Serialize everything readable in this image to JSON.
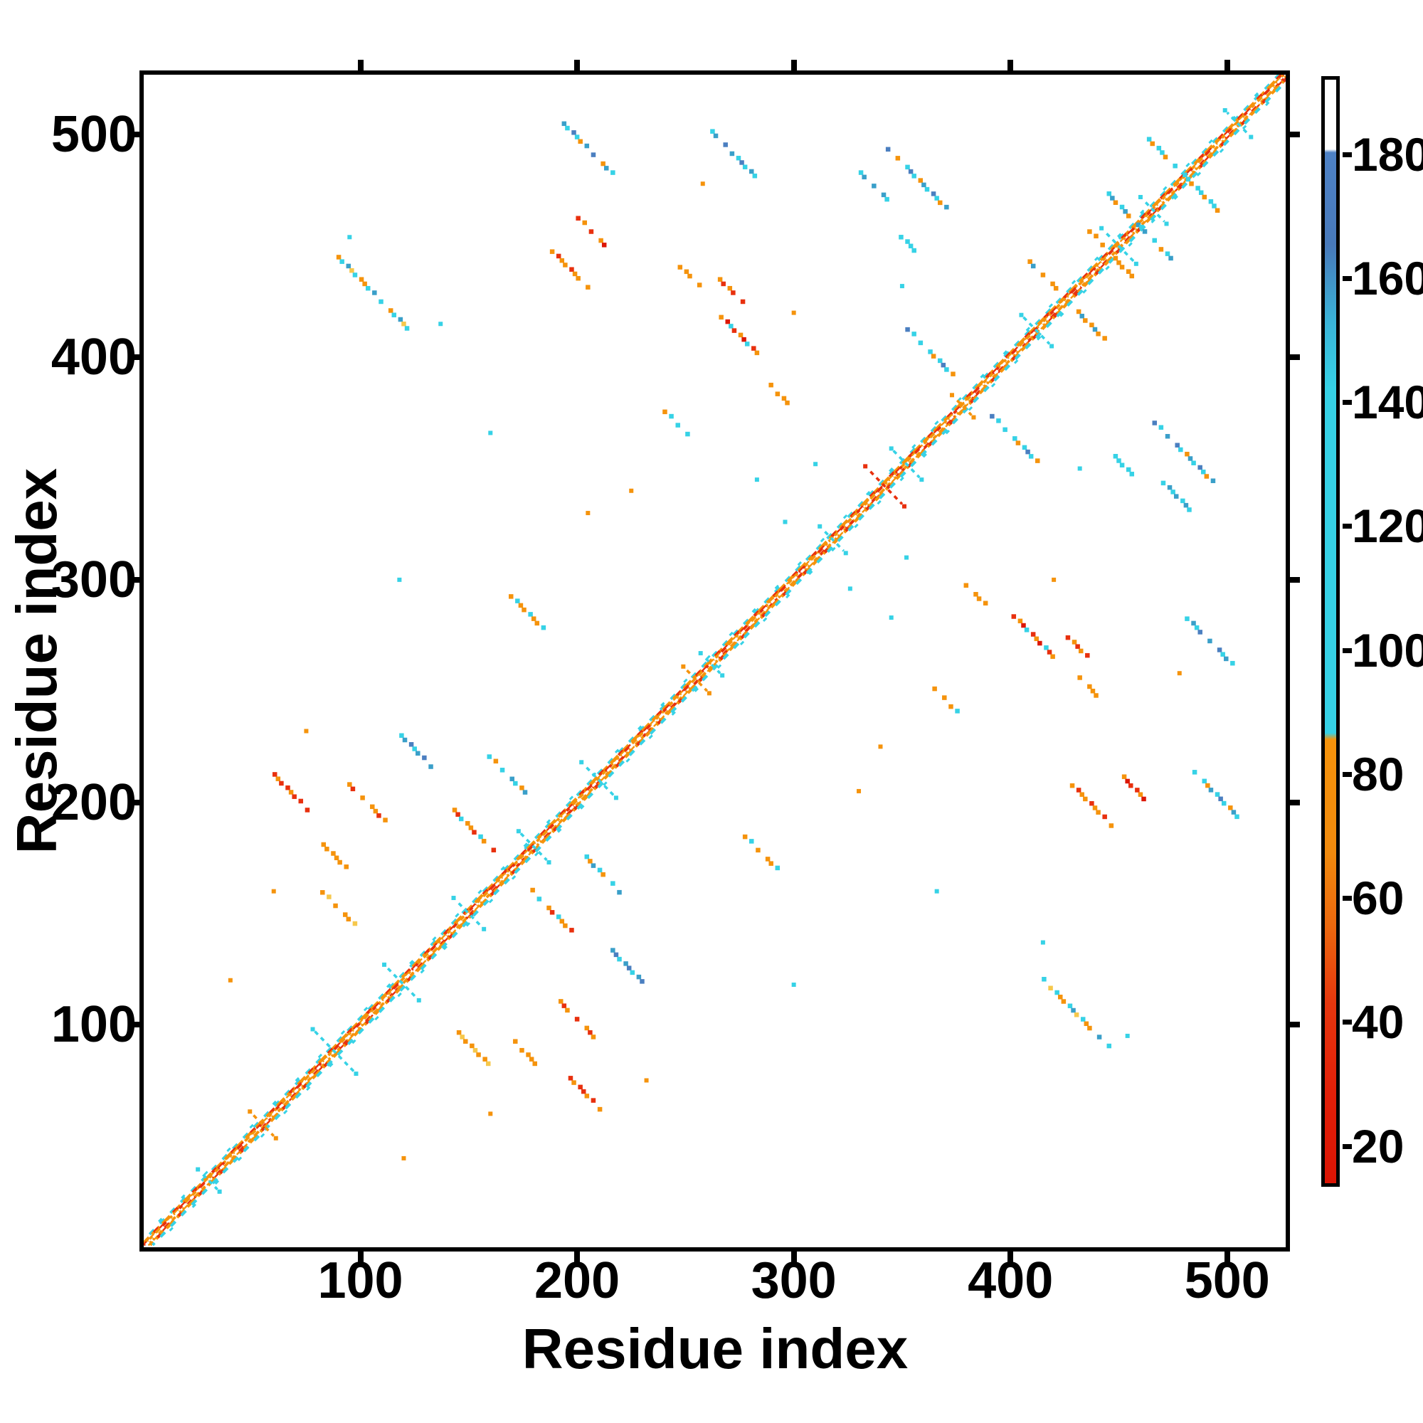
{
  "chart_data": {
    "type": "heatmap",
    "title": "",
    "xlabel": "Residue index",
    "ylabel": "Residue index",
    "x_range": [
      1,
      527
    ],
    "y_range": [
      1,
      527
    ],
    "x_ticks": [
      100,
      200,
      300,
      400,
      500
    ],
    "y_ticks": [
      100,
      200,
      300,
      400,
      500
    ],
    "grid": false,
    "description": "Symmetric residue-residue contact map; main diagonal band of near-sequence contacts plus anti-parallel off-diagonal contact streaks; cell color encodes the colorbar value",
    "colors": {
      "cyan": "#36d2e6",
      "teal": "#3a9fc9",
      "blue": "#4b7fc0",
      "orange": "#f5930c",
      "red": "#e8300e",
      "deepred": "#dc1706",
      "gold": "#f6c84c",
      "white": "#ffffff",
      "axis": "#000000"
    },
    "colorbar": {
      "ticks": [
        20,
        40,
        60,
        80,
        100,
        120,
        140,
        160,
        180
      ],
      "vmin": 14,
      "vmax": 192,
      "legend_position": "right",
      "gradient_stops": [
        [
          0,
          "#ffffff"
        ],
        [
          6.3,
          "#ffffff"
        ],
        [
          6.6,
          "#4e82c6"
        ],
        [
          15,
          "#4879ba"
        ],
        [
          22,
          "#3ab4d8"
        ],
        [
          28,
          "#36d2e6"
        ],
        [
          59.2,
          "#36d2e6"
        ],
        [
          59.8,
          "#f6930b"
        ],
        [
          70,
          "#f18a0d"
        ],
        [
          76.5,
          "#ec690e"
        ],
        [
          83.8,
          "#e6360e"
        ],
        [
          92,
          "#e21f08"
        ],
        [
          100,
          "#db1404"
        ]
      ]
    },
    "diagonal": {
      "from": 1,
      "to": 527,
      "stripes": [
        {
          "off": -4.6,
          "color": "cyan",
          "dash": "6 40",
          "w": 3.0,
          "dof": 0
        },
        {
          "off": -3.1,
          "color": "cyan",
          "dash": "9 12",
          "w": 4.0,
          "dof": 0
        },
        {
          "off": -2.0,
          "color": "orange",
          "dash": "15 6",
          "w": 4.2,
          "dof": 0
        },
        {
          "off": -2.0,
          "color": "red",
          "dash": "9 30",
          "w": 4.2,
          "dof": 14
        },
        {
          "off": -1.0,
          "color": "orange",
          "dash": "9 3",
          "w": 3.8,
          "dof": 0
        },
        {
          "off": -1.0,
          "color": "red",
          "dash": "12 27",
          "w": 3.8,
          "dof": 6
        },
        {
          "off": 1.0,
          "color": "orange",
          "dash": "9 3",
          "w": 3.8,
          "dof": 2
        },
        {
          "off": 1.0,
          "color": "red",
          "dash": "15 36",
          "w": 3.8,
          "dof": 22
        },
        {
          "off": 2.0,
          "color": "orange",
          "dash": "15 6",
          "w": 4.2,
          "dof": 9
        },
        {
          "off": 2.0,
          "color": "red",
          "dash": "6 36",
          "w": 4.2,
          "dof": 27
        },
        {
          "off": 3.1,
          "color": "cyan",
          "dash": "9 12",
          "w": 4.0,
          "dof": 5
        },
        {
          "off": 4.6,
          "color": "cyan",
          "dash": "6 40",
          "w": 3.0,
          "dof": 18
        },
        {
          "off": 0.0,
          "color": "white",
          "dash": "6 9",
          "w": 3.4,
          "dof": 0
        }
      ]
    },
    "crossings": [
      {
        "c": 30,
        "arm": 4,
        "color": "cyan"
      },
      {
        "c": 55,
        "arm": 5,
        "color": "orange"
      },
      {
        "c": 88,
        "arm": 9,
        "color": "cyan"
      },
      {
        "c": 119,
        "arm": 7,
        "color": "cyan"
      },
      {
        "c": 150,
        "arm": 6,
        "color": "cyan"
      },
      {
        "c": 180,
        "arm": 6,
        "color": "cyan"
      },
      {
        "c": 210,
        "arm": 7,
        "color": "cyan"
      },
      {
        "c": 255,
        "arm": 5,
        "color": "orange"
      },
      {
        "c": 262,
        "arm": 4,
        "color": "cyan"
      },
      {
        "c": 318,
        "arm": 5,
        "color": "cyan"
      },
      {
        "c": 342,
        "arm": 8,
        "color": "red"
      },
      {
        "c": 352,
        "arm": 6,
        "color": "cyan"
      },
      {
        "c": 378,
        "arm": 4,
        "color": "orange"
      },
      {
        "c": 412,
        "arm": 6,
        "color": "cyan"
      },
      {
        "c": 450,
        "arm": 7,
        "color": "cyan"
      },
      {
        "c": 466,
        "arm": 5,
        "color": "cyan"
      },
      {
        "c": 505,
        "arm": 5,
        "color": "cyan"
      }
    ],
    "features": [
      {
        "i": 106,
        "j": 429,
        "h": 16,
        "p": [
          "orange",
          "cyan",
          "teal",
          "gold",
          "cyan",
          "orange"
        ]
      },
      {
        "i": 205,
        "j": 494,
        "h": 11,
        "p": [
          "teal",
          "cyan",
          "blue",
          "cyan",
          "orange"
        ]
      },
      {
        "i": 272,
        "j": 492,
        "h": 10,
        "p": [
          "cyan",
          "teal",
          "cyan",
          "blue"
        ]
      },
      {
        "i": 337,
        "j": 477,
        "h": 6,
        "p": [
          "cyan",
          "teal"
        ]
      },
      {
        "i": 207,
        "j": 456,
        "h": 6,
        "p": [
          "red",
          "orange",
          "deepred",
          "red"
        ]
      },
      {
        "i": 198,
        "j": 438,
        "h": 9,
        "p": [
          "orange",
          "red",
          "orange"
        ]
      },
      {
        "i": 252,
        "j": 436,
        "h": 4,
        "p": [
          "orange"
        ]
      },
      {
        "i": 271,
        "j": 430,
        "h": 5,
        "p": [
          "orange",
          "red"
        ]
      },
      {
        "i": 352,
        "j": 452,
        "h": 4,
        "p": [
          "cyan"
        ]
      },
      {
        "i": 363,
        "j": 402,
        "h": 10,
        "p": [
          "blue",
          "cyan",
          "orange",
          "cyan"
        ]
      },
      {
        "i": 293,
        "j": 384,
        "h": 4,
        "p": [
          "orange"
        ]
      },
      {
        "i": 246,
        "j": 370,
        "h": 5,
        "p": [
          "orange",
          "cyan"
        ]
      },
      {
        "i": 357,
        "j": 480,
        "h": 13,
        "p": [
          "blue",
          "cyan",
          "orange",
          "teal",
          "cyan"
        ]
      },
      {
        "i": 452,
        "j": 467,
        "h": 7,
        "p": [
          "cyan",
          "teal",
          "orange"
        ]
      },
      {
        "i": 452,
        "j": 441,
        "h": 4,
        "p": [
          "orange"
        ]
      },
      {
        "i": 274,
        "j": 411,
        "h": 9,
        "p": [
          "red",
          "orange",
          "deepred",
          "cyan"
        ]
      },
      {
        "i": 152,
        "j": 188,
        "h": 9,
        "p": [
          "orange",
          "red",
          "cyan",
          "orange"
        ]
      },
      {
        "i": 168,
        "j": 212,
        "h": 8,
        "p": [
          "cyan",
          "orange",
          "teal"
        ]
      },
      {
        "i": 127,
        "j": 222,
        "h": 8,
        "p": [
          "cyan",
          "teal",
          "blue"
        ]
      },
      {
        "i": 103,
        "j": 200,
        "h": 8,
        "p": [
          "orange",
          "red",
          "orange"
        ]
      },
      {
        "i": 88,
        "j": 176,
        "h": 5,
        "p": [
          "orange"
        ]
      },
      {
        "i": 68,
        "j": 205,
        "h": 8,
        "p": [
          "red",
          "orange",
          "red"
        ]
      },
      {
        "i": 177,
        "j": 285,
        "h": 7,
        "p": [
          "orange",
          "cyan",
          "orange"
        ]
      },
      {
        "i": 90,
        "j": 152,
        "h": 7,
        "p": [
          "orange",
          "gold",
          "orange"
        ]
      },
      {
        "i": 472,
        "j": 490,
        "h": 8,
        "p": [
          "cyan",
          "orange",
          "cyan"
        ]
      },
      {
        "i": 415,
        "j": 437,
        "h": 6,
        "p": [
          "orange",
          "teal",
          "orange"
        ]
      }
    ],
    "flecks": [
      [
        296,
        326,
        "cyan"
      ],
      [
        160,
        366,
        "cyan"
      ],
      [
        95,
        454,
        "cyan"
      ],
      [
        225,
        340,
        "orange"
      ],
      [
        283,
        345,
        "cyan"
      ],
      [
        137,
        415,
        "cyan"
      ],
      [
        258,
        478,
        "orange"
      ],
      [
        60,
        160,
        "orange"
      ],
      [
        75,
        232,
        "orange"
      ],
      [
        40,
        120,
        "orange"
      ],
      [
        300,
        420,
        "orange"
      ],
      [
        310,
        352,
        "cyan"
      ],
      [
        350,
        432,
        "cyan"
      ],
      [
        205,
        330,
        "orange"
      ],
      [
        118,
        300,
        "cyan"
      ]
    ]
  }
}
